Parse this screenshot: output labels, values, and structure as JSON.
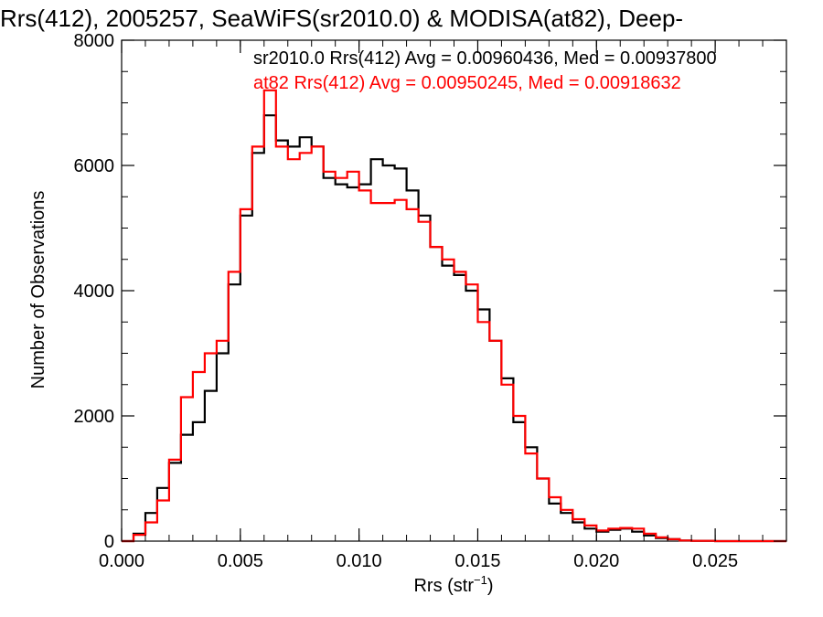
{
  "chart_data": {
    "type": "line",
    "title": "Rrs(412), 2005257, SeaWiFS(sr2010.0) & MODISA(at82), Deep-",
    "xlabel": "Rrs (str",
    "xlabel_sup": "−1",
    "xlabel_close": ")",
    "ylabel": "Number of Observations",
    "xlim": [
      0,
      0.028
    ],
    "ylim": [
      0,
      8000
    ],
    "xticks": [
      0,
      0.005,
      0.01,
      0.015,
      0.02,
      0.025
    ],
    "xtick_labels": [
      "0.000",
      "0.005",
      "0.010",
      "0.015",
      "0.020",
      "0.025"
    ],
    "yticks": [
      0,
      2000,
      4000,
      6000,
      8000
    ],
    "ytick_labels": [
      "0",
      "2000",
      "4000",
      "6000",
      "8000"
    ],
    "grid": false,
    "step": true,
    "annotations": [
      {
        "text": "sr2010.0 Rrs(412) Avg = 0.00960436, Med = 0.00937800",
        "color": "#000000"
      },
      {
        "text": "at82 Rrs(412) Avg = 0.00950245, Med = 0.00918632",
        "color": "#ff0000"
      }
    ],
    "series": [
      {
        "color": "#000000",
        "points": [
          [
            0,
            0
          ],
          [
            0.0005,
            120
          ],
          [
            0.001,
            450
          ],
          [
            0.0015,
            850
          ],
          [
            0.002,
            1250
          ],
          [
            0.0025,
            1700
          ],
          [
            0.003,
            1900
          ],
          [
            0.0035,
            2400
          ],
          [
            0.004,
            3000
          ],
          [
            0.0045,
            4100
          ],
          [
            0.005,
            5200
          ],
          [
            0.0055,
            6200
          ],
          [
            0.006,
            6800
          ],
          [
            0.0065,
            6400
          ],
          [
            0.007,
            6300
          ],
          [
            0.0075,
            6450
          ],
          [
            0.008,
            6300
          ],
          [
            0.0085,
            5800
          ],
          [
            0.009,
            5700
          ],
          [
            0.0095,
            5650
          ],
          [
            0.01,
            5700
          ],
          [
            0.0105,
            6100
          ],
          [
            0.011,
            6000
          ],
          [
            0.0115,
            5950
          ],
          [
            0.012,
            5600
          ],
          [
            0.0125,
            5200
          ],
          [
            0.013,
            4700
          ],
          [
            0.0135,
            4400
          ],
          [
            0.014,
            4250
          ],
          [
            0.0145,
            4000
          ],
          [
            0.015,
            3700
          ],
          [
            0.0155,
            3200
          ],
          [
            0.016,
            2600
          ],
          [
            0.0165,
            1900
          ],
          [
            0.017,
            1500
          ],
          [
            0.0175,
            1000
          ],
          [
            0.018,
            600
          ],
          [
            0.0185,
            450
          ],
          [
            0.019,
            300
          ],
          [
            0.0195,
            200
          ],
          [
            0.02,
            150
          ],
          [
            0.0205,
            180
          ],
          [
            0.021,
            200
          ],
          [
            0.0215,
            150
          ],
          [
            0.022,
            90
          ],
          [
            0.0225,
            50
          ],
          [
            0.023,
            30
          ],
          [
            0.0235,
            10
          ],
          [
            0.024,
            5
          ],
          [
            0.025,
            0
          ],
          [
            0.028,
            0
          ]
        ]
      },
      {
        "color": "#ff0000",
        "points": [
          [
            0,
            0
          ],
          [
            0.0005,
            100
          ],
          [
            0.001,
            300
          ],
          [
            0.0015,
            650
          ],
          [
            0.002,
            1300
          ],
          [
            0.0025,
            2300
          ],
          [
            0.003,
            2700
          ],
          [
            0.0035,
            3000
          ],
          [
            0.004,
            3200
          ],
          [
            0.0045,
            4300
          ],
          [
            0.005,
            5300
          ],
          [
            0.0055,
            6300
          ],
          [
            0.006,
            7200
          ],
          [
            0.0065,
            6300
          ],
          [
            0.007,
            6100
          ],
          [
            0.0075,
            6200
          ],
          [
            0.008,
            6300
          ],
          [
            0.0085,
            5900
          ],
          [
            0.009,
            5800
          ],
          [
            0.0095,
            5900
          ],
          [
            0.01,
            5600
          ],
          [
            0.0105,
            5400
          ],
          [
            0.011,
            5400
          ],
          [
            0.0115,
            5450
          ],
          [
            0.012,
            5300
          ],
          [
            0.0125,
            5100
          ],
          [
            0.013,
            4700
          ],
          [
            0.0135,
            4500
          ],
          [
            0.014,
            4300
          ],
          [
            0.0145,
            4100
          ],
          [
            0.015,
            3500
          ],
          [
            0.0155,
            3200
          ],
          [
            0.016,
            2500
          ],
          [
            0.0165,
            2000
          ],
          [
            0.017,
            1400
          ],
          [
            0.0175,
            1000
          ],
          [
            0.018,
            700
          ],
          [
            0.0185,
            500
          ],
          [
            0.019,
            350
          ],
          [
            0.0195,
            250
          ],
          [
            0.02,
            170
          ],
          [
            0.0205,
            200
          ],
          [
            0.021,
            210
          ],
          [
            0.0215,
            200
          ],
          [
            0.022,
            120
          ],
          [
            0.0225,
            60
          ],
          [
            0.023,
            30
          ],
          [
            0.0235,
            10
          ],
          [
            0.024,
            5
          ],
          [
            0.025,
            0
          ],
          [
            0.028,
            0
          ]
        ]
      }
    ]
  }
}
